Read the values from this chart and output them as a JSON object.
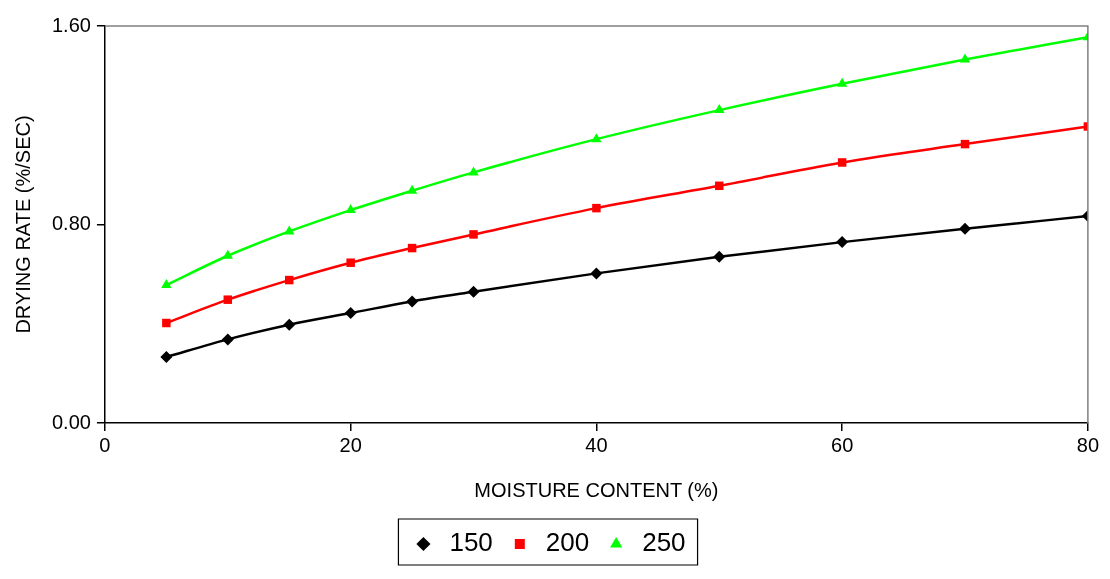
{
  "chart_data": {
    "type": "line",
    "xlabel": "MOISTURE CONTENT (%)",
    "ylabel": "DRYING RATE (%/SEC)",
    "x": [
      5,
      10,
      15,
      20,
      25,
      30,
      40,
      50,
      60,
      70,
      80
    ],
    "xlim": [
      0,
      80
    ],
    "xticks": [
      0,
      20,
      40,
      60,
      80
    ],
    "ylim": [
      0,
      1.6
    ],
    "yticks": [
      {
        "value": 0,
        "label": "0.00"
      },
      {
        "value": 0.8,
        "label": "0.80"
      },
      {
        "value": 1.6,
        "label": "1.60"
      }
    ],
    "grid": false,
    "legend": "bottom",
    "line_style": "solid",
    "series": [
      {
        "name": "150",
        "color": "#000000",
        "marker": "diamond",
        "values": [
          0.266,
          0.337,
          0.396,
          0.443,
          0.49,
          0.529,
          0.603,
          0.67,
          0.729,
          0.783,
          0.834
        ]
      },
      {
        "name": "200",
        "color": "#ff0000",
        "marker": "square",
        "values": [
          0.403,
          0.497,
          0.576,
          0.646,
          0.705,
          0.76,
          0.866,
          0.956,
          1.05,
          1.124,
          1.195
        ]
      },
      {
        "name": "250",
        "color": "#00ff00",
        "marker": "triangle",
        "values": [
          0.556,
          0.674,
          0.772,
          0.858,
          0.936,
          1.01,
          1.144,
          1.261,
          1.367,
          1.465,
          1.555
        ]
      }
    ]
  }
}
